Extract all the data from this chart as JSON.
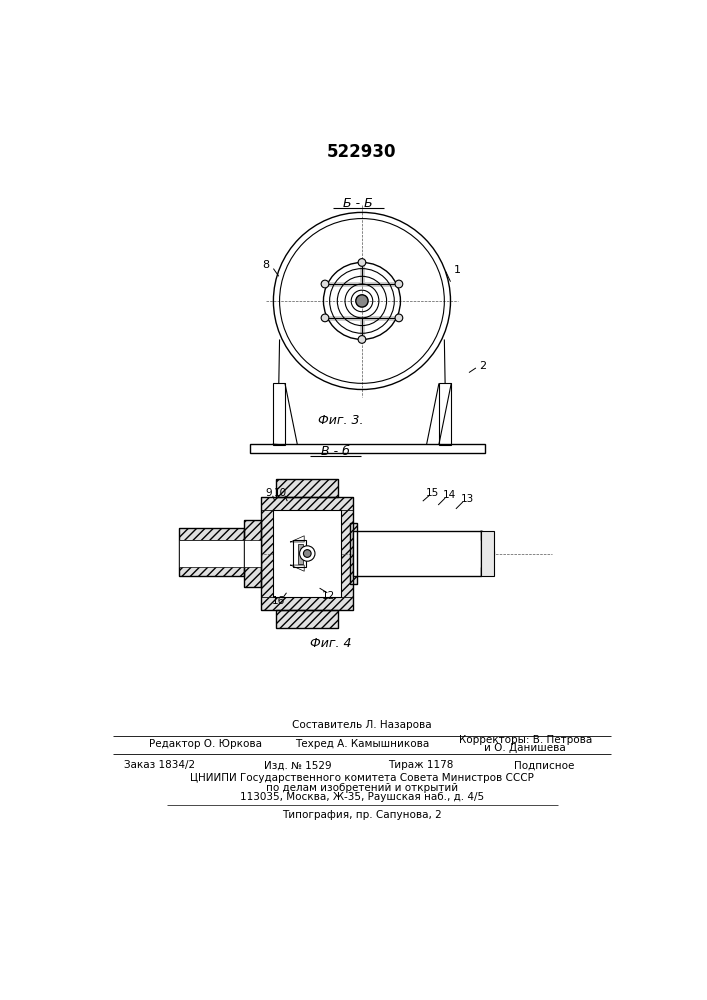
{
  "patent_number": "522930",
  "fig3_label": "Б - Б",
  "fig4_label": "В - б",
  "fig3_caption": "Фиг. 3.",
  "fig4_caption": "Фиг. 4",
  "footer_line1_col2": "Составитель Л. Назарова",
  "footer_line1_col1": "Редактор О. Юркова",
  "footer_line1_col3": "Корректоры: В. Петрова",
  "footer_line1_col3b": "и О. Данишева",
  "footer_line2_col2": "Техред А. Камышникова",
  "footer_bottom1": "Заказ 1834/2",
  "footer_bottom2": "Изд. № 1529",
  "footer_bottom3": "Тираж 1178",
  "footer_bottom4": "Подписное",
  "footer_org1": "ЦНИИПИ Государственного комитета Совета Министров СССР",
  "footer_org2": "по делам изобретений и открытий",
  "footer_org3": "113035, Москва, Ж-35, Раушская наб., д. 4/5",
  "footer_print": "Типография, пр. Сапунова, 2",
  "bg_color": "#ffffff",
  "line_color": "#000000"
}
